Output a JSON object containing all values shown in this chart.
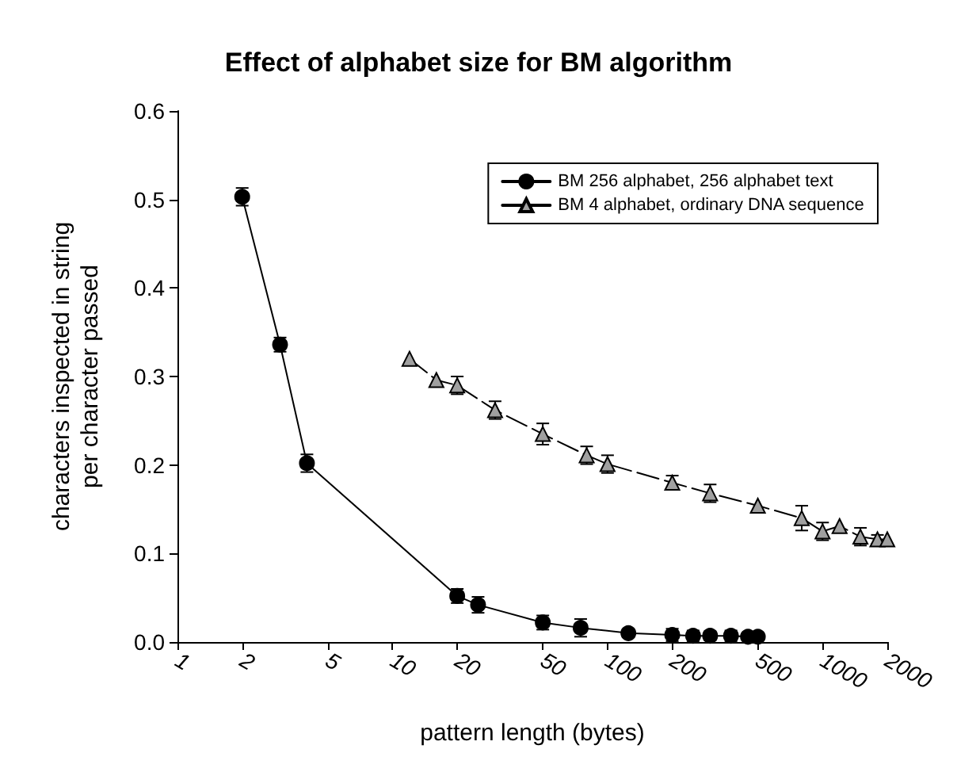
{
  "chart_data": {
    "type": "line",
    "title": "Effect of alphabet size for BM algorithm",
    "xlabel": "pattern length (bytes)",
    "ylabel": "characters inspected in string\nper character passed",
    "log": "x",
    "xlim": [
      1,
      2000
    ],
    "xticks": [
      1,
      2,
      5,
      10,
      20,
      50,
      100,
      200,
      500,
      1000,
      2000
    ],
    "ylim": [
      0,
      0.6
    ],
    "yticks": [
      {
        "value": 0,
        "label": "0.0"
      },
      {
        "value": 0.1,
        "label": "0.1"
      },
      {
        "value": 0.2,
        "label": "0.2"
      },
      {
        "value": 0.3,
        "label": "0.3"
      },
      {
        "value": 0.4,
        "label": "0.4"
      },
      {
        "value": 0.5,
        "label": "0.5"
      },
      {
        "value": 0.6,
        "label": "0.6"
      }
    ],
    "grid": false,
    "legend": "top right",
    "series": [
      {
        "name": "BM 256 alphabet, 256 alphabet text",
        "color": "#000000",
        "marker": "circle",
        "line_style": "solid",
        "x": [
          2,
          3,
          4,
          20,
          25,
          50,
          75,
          125,
          200,
          250,
          300,
          375,
          450,
          500
        ],
        "values": [
          0.503,
          0.336,
          0.202,
          0.052,
          0.042,
          0.022,
          0.016,
          0.01,
          0.008,
          0.007,
          0.007,
          0.007,
          0.006,
          0.006
        ],
        "errors": [
          0.01,
          0.008,
          0.01,
          0.008,
          0.009,
          0.008,
          0.01,
          0.004,
          0.007,
          0.006,
          0.005,
          0.006,
          0.004,
          0.004
        ]
      },
      {
        "name": "BM 4 alphabet, ordinary DNA sequence",
        "color": "#a0a0a0",
        "marker": "triangle",
        "line_style": "dashed",
        "x": [
          12,
          16,
          20,
          30,
          50,
          80,
          100,
          200,
          300,
          500,
          800,
          1000,
          1200,
          1500,
          1800,
          2000
        ],
        "values": [
          0.32,
          0.296,
          0.29,
          0.262,
          0.235,
          0.211,
          0.201,
          0.18,
          0.168,
          0.154,
          0.14,
          0.125,
          0.131,
          0.119,
          0.116,
          0.116
        ],
        "errors": [
          null,
          null,
          0.01,
          0.01,
          0.012,
          0.01,
          0.01,
          0.008,
          0.01,
          null,
          0.014,
          0.01,
          null,
          0.01,
          0.005,
          null
        ]
      }
    ]
  }
}
